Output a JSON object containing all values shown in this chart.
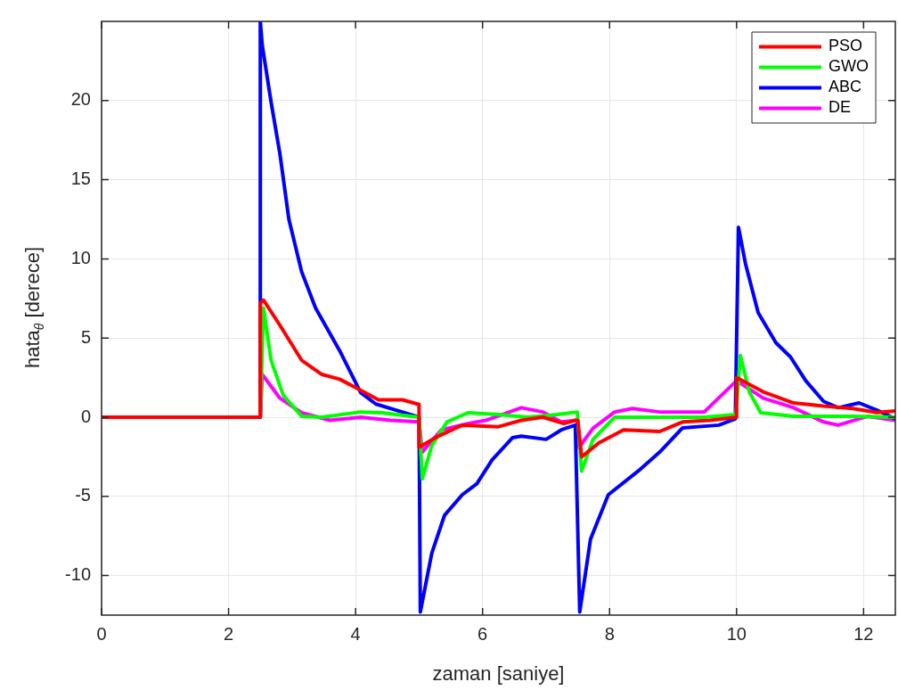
{
  "chart_data": {
    "type": "line",
    "xlabel": "zaman [saniye]",
    "ylabel": "hata$_{θ}$ [derece]",
    "xlim": [
      0,
      12.5
    ],
    "ylim": [
      -12.5,
      25
    ],
    "xticks": [
      0,
      2,
      4,
      6,
      8,
      10,
      12
    ],
    "yticks": [
      -10,
      -5,
      0,
      5,
      10,
      15,
      20
    ],
    "grid": true,
    "legend": "top right",
    "line_style": "solid",
    "marker": "none",
    "series": [
      {
        "name": "PSO",
        "color": "#ff0000",
        "x": [
          0,
          2.5,
          2.5,
          2.55,
          2.81,
          3.15,
          3.47,
          3.75,
          4.08,
          4.36,
          4.74,
          5.0,
          5.0,
          5.3,
          5.68,
          6.25,
          6.61,
          6.95,
          7.28,
          7.46,
          7.5,
          7.56,
          7.84,
          8.22,
          8.79,
          9.15,
          9.58,
          10.0,
          10.0,
          10.42,
          10.9,
          11.37,
          11.83,
          12.21,
          12.5
        ],
        "values": [
          0,
          0,
          7.2,
          7.4,
          5.8,
          3.6,
          2.7,
          2.4,
          1.7,
          1.1,
          1.1,
          0.8,
          -1.9,
          -1.2,
          -0.5,
          -0.6,
          -0.2,
          0,
          -0.4,
          -0.2,
          -0.2,
          -2.5,
          -1.6,
          -0.8,
          -0.9,
          -0.3,
          -0.2,
          0,
          2.5,
          1.6,
          0.9,
          0.7,
          0.55,
          0.3,
          0.4
        ]
      },
      {
        "name": "GWO",
        "color": "#00ff00",
        "x": [
          0,
          2.5,
          2.55,
          2.67,
          2.86,
          3.15,
          3.47,
          4.08,
          4.41,
          5.0,
          5.05,
          5.2,
          5.44,
          5.77,
          6.25,
          6.71,
          7.18,
          7.49,
          7.56,
          7.74,
          8.08,
          8.79,
          9.49,
          9.99,
          10.06,
          10.2,
          10.38,
          10.9,
          11.83,
          12.5
        ],
        "values": [
          0,
          0,
          6.9,
          3.6,
          1.4,
          0.06,
          0,
          0.33,
          0.28,
          0,
          -3.9,
          -1.8,
          -0.3,
          0.28,
          0.17,
          0,
          0.17,
          0.33,
          -3.4,
          -1.4,
          0,
          0,
          0,
          0.17,
          3.9,
          1.6,
          0.28,
          0.06,
          0.06,
          0
        ]
      },
      {
        "name": "ABC",
        "color": "#0000ff",
        "x": [
          0,
          2.5,
          2.5,
          2.53,
          2.67,
          2.81,
          2.95,
          3.15,
          3.37,
          3.75,
          4.08,
          4.32,
          4.64,
          5.0,
          5.02,
          5.2,
          5.4,
          5.68,
          5.91,
          6.15,
          6.47,
          6.61,
          7.0,
          7.24,
          7.46,
          7.53,
          7.7,
          7.98,
          8.45,
          8.79,
          9.15,
          9.72,
          9.98,
          10.03,
          10.14,
          10.34,
          10.62,
          10.85,
          11.09,
          11.37,
          11.6,
          11.93,
          12.21,
          12.5
        ],
        "values": [
          0,
          0,
          25,
          23.5,
          19.9,
          16.6,
          12.5,
          9.2,
          6.9,
          4.2,
          1.56,
          0.83,
          0.44,
          0,
          -12.3,
          -8.6,
          -6.2,
          -4.9,
          -4.2,
          -2.7,
          -1.3,
          -1.2,
          -1.4,
          -0.8,
          -0.5,
          -12.3,
          -7.7,
          -4.9,
          -3.4,
          -2.2,
          -0.67,
          -0.5,
          -0.1,
          12,
          9.7,
          6.6,
          4.7,
          3.8,
          2.3,
          1,
          0.6,
          0.9,
          0.44,
          -0.1
        ]
      },
      {
        "name": "DE",
        "color": "#ff00ff",
        "x": [
          0,
          2.5,
          2.53,
          2.81,
          3.15,
          3.6,
          4.08,
          4.55,
          5.0,
          5.05,
          5.35,
          5.77,
          6.05,
          6.61,
          6.95,
          7.24,
          7.49,
          7.52,
          7.74,
          8.08,
          8.36,
          8.79,
          9.49,
          10.0,
          10.42,
          10.9,
          11.37,
          11.6,
          12.07,
          12.5
        ],
        "values": [
          0,
          0,
          2.7,
          1.2,
          0.28,
          -0.2,
          0,
          -0.2,
          -0.3,
          -2.2,
          -0.8,
          -0.4,
          -0.2,
          0.6,
          0.33,
          -0.3,
          -0.2,
          -1.9,
          -0.7,
          0.33,
          0.55,
          0.33,
          0.33,
          2.3,
          1.2,
          0.6,
          -0.3,
          -0.5,
          0.06,
          -0.2
        ]
      }
    ]
  }
}
